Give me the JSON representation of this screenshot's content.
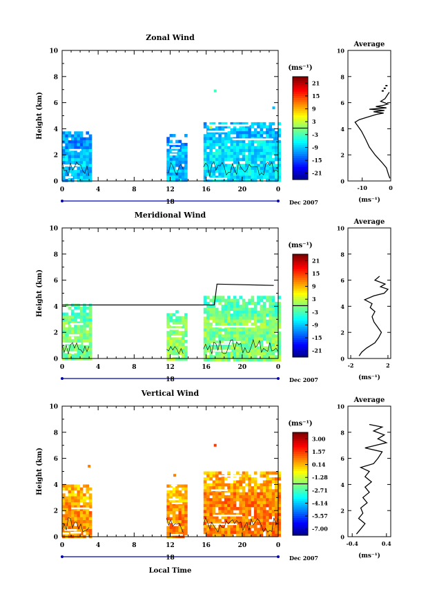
{
  "chart_data": [
    {
      "type": "heatmap",
      "title": "Zonal Wind",
      "ylabel": "Height (km)",
      "ylim": [
        0,
        10
      ],
      "yticks": [
        "0",
        "2",
        "4",
        "6",
        "8",
        "10"
      ],
      "xlim": [
        0,
        24
      ],
      "xticks": [
        "0",
        "4",
        "8",
        "12",
        "16",
        "20",
        "0"
      ],
      "date_tick": "18",
      "date_label": "Dec 2007",
      "colorbar_unit": "(ms⁻¹)",
      "colorbar_ticks": [
        "21",
        "15",
        "9",
        "3",
        "-3",
        "-9",
        "-15",
        "-21"
      ],
      "colorbar_range": [
        -24,
        24
      ],
      "data_blocks": [
        {
          "x": [
            0,
            3
          ],
          "y": [
            0,
            3.8
          ],
          "value": -9
        },
        {
          "x": [
            11.6,
            13.6
          ],
          "y": [
            0,
            3.6
          ],
          "value": -9
        },
        {
          "x": [
            15.7,
            24
          ],
          "y": [
            0,
            4.5
          ],
          "value": -7
        }
      ],
      "scattered_points": [
        {
          "x": 17.0,
          "y": 6.9,
          "value": -3
        },
        {
          "x": 16.5,
          "y": 4.1,
          "value": 4
        },
        {
          "x": 23.5,
          "y": 5.6,
          "value": -9
        }
      ],
      "average": {
        "title": "Average",
        "xlabel": "(ms⁻¹)",
        "xticks": [
          "-10",
          "0"
        ],
        "xlim": [
          -15,
          0
        ],
        "profile": [
          [
            -0.3,
            0.2
          ],
          [
            -0.8,
            0.5
          ],
          [
            -1.5,
            1.0
          ],
          [
            -3.0,
            1.4
          ],
          [
            -5.5,
            2.0
          ],
          [
            -7.5,
            2.6
          ],
          [
            -8.8,
            3.2
          ],
          [
            -10.2,
            3.8
          ],
          [
            -11.5,
            4.2
          ],
          [
            -12.5,
            4.5
          ],
          [
            -11.0,
            4.7
          ],
          [
            -8.0,
            4.9
          ],
          [
            -5.0,
            5.1
          ],
          [
            -2.5,
            5.2
          ],
          [
            -6.0,
            5.3
          ],
          [
            -2.2,
            5.4
          ],
          [
            -7.5,
            5.5
          ],
          [
            -1.5,
            5.6
          ],
          [
            -5.2,
            5.7
          ],
          [
            -2.5,
            5.8
          ],
          [
            -1.0,
            5.9
          ],
          [
            -3.5,
            6.1
          ],
          [
            -2.0,
            6.3
          ],
          [
            -0.5,
            6.8
          ]
        ],
        "upper_points": [
          [
            -1.5,
            7.3
          ],
          [
            -2.1,
            7.1
          ],
          [
            -2.8,
            6.9
          ]
        ]
      }
    },
    {
      "type": "heatmap",
      "title": "Meridional Wind",
      "ylabel": "Height (km)",
      "ylim": [
        0,
        10
      ],
      "yticks": [
        "0",
        "2",
        "4",
        "6",
        "8",
        "10"
      ],
      "xlim": [
        0,
        24
      ],
      "xticks": [
        "0",
        "4",
        "8",
        "12",
        "16",
        "20",
        "0"
      ],
      "date_tick": "18",
      "date_label": "Dec 2007",
      "colorbar_unit": "(ms⁻¹)",
      "colorbar_ticks": [
        "21",
        "15",
        "9",
        "3",
        "-3",
        "-9",
        "-15",
        "-21"
      ],
      "colorbar_range": [
        -24,
        24
      ],
      "data_blocks": [
        {
          "x": [
            0,
            3
          ],
          "y": [
            0,
            4.2
          ],
          "value": 0
        },
        {
          "x": [
            11.6,
            13.6
          ],
          "y": [
            0,
            3.7
          ],
          "value": 1
        },
        {
          "x": [
            15.7,
            24
          ],
          "y": [
            0,
            4.8
          ],
          "value": 0
        }
      ],
      "cutoff_line": [
        [
          0,
          4.1
        ],
        [
          16.9,
          4.1
        ],
        [
          17.2,
          5.7
        ],
        [
          23.5,
          5.6
        ]
      ],
      "average": {
        "title": "Average",
        "xlabel": "(ms⁻¹)",
        "xticks": [
          "-2",
          "2"
        ],
        "xlim": [
          -2.3,
          2.3
        ],
        "profile": [
          [
            -1.1,
            0.2
          ],
          [
            -0.8,
            0.5
          ],
          [
            -0.3,
            0.8
          ],
          [
            0.6,
            1.2
          ],
          [
            1.0,
            1.6
          ],
          [
            1.3,
            2.0
          ],
          [
            0.9,
            2.4
          ],
          [
            0.5,
            2.8
          ],
          [
            0.3,
            3.2
          ],
          [
            0.6,
            3.6
          ],
          [
            0.1,
            3.9
          ],
          [
            0.3,
            4.2
          ],
          [
            -0.5,
            4.5
          ],
          [
            0.5,
            4.8
          ],
          [
            1.6,
            5.0
          ],
          [
            2.0,
            5.3
          ],
          [
            1.2,
            5.5
          ],
          [
            1.7,
            5.7
          ],
          [
            0.6,
            6.0
          ],
          [
            1.1,
            6.3
          ]
        ]
      }
    },
    {
      "type": "heatmap",
      "title": "Vertical Wind",
      "ylabel": "Height (km)",
      "xlabel": "Local Time",
      "ylim": [
        0,
        10
      ],
      "yticks": [
        "0",
        "2",
        "4",
        "6",
        "8",
        "10"
      ],
      "xlim": [
        0,
        24
      ],
      "xticks": [
        "0",
        "4",
        "8",
        "12",
        "16",
        "20",
        "0"
      ],
      "date_tick": "18",
      "date_label": "Dec 2007",
      "colorbar_unit": "(ms⁻¹)",
      "colorbar_ticks": [
        "3.00",
        "1.57",
        "0.14",
        "-1.28",
        "-2.71",
        "-4.14",
        "-5.57",
        "-7.00"
      ],
      "colorbar_range": [
        -7.0,
        3.0
      ],
      "data_blocks": [
        {
          "x": [
            0,
            3
          ],
          "y": [
            0,
            4.0
          ],
          "value": 0.3
        },
        {
          "x": [
            11.6,
            13.6
          ],
          "y": [
            0,
            4.0
          ],
          "value": 0.4
        },
        {
          "x": [
            15.7,
            24
          ],
          "y": [
            0,
            5.0
          ],
          "value": 0.5
        }
      ],
      "scattered_points": [
        {
          "x": 17.0,
          "y": 7.0,
          "value": 1.2
        },
        {
          "x": 3.0,
          "y": 5.4,
          "value": 0.5
        },
        {
          "x": 12.5,
          "y": 4.7,
          "value": 0.5
        }
      ],
      "average": {
        "title": "Average",
        "xlabel": "(ms⁻¹)",
        "xticks": [
          "-0.4",
          "0.4"
        ],
        "xlim": [
          -0.5,
          0.5
        ],
        "profile": [
          [
            -0.3,
            0.2
          ],
          [
            -0.2,
            0.6
          ],
          [
            -0.1,
            1.0
          ],
          [
            -0.25,
            1.4
          ],
          [
            -0.15,
            1.8
          ],
          [
            -0.2,
            2.2
          ],
          [
            -0.05,
            2.6
          ],
          [
            -0.15,
            3.0
          ],
          [
            0.0,
            3.4
          ],
          [
            -0.1,
            3.8
          ],
          [
            0.05,
            4.2
          ],
          [
            -0.1,
            4.6
          ],
          [
            0.0,
            5.0
          ],
          [
            -0.2,
            5.3
          ],
          [
            0.1,
            5.6
          ],
          [
            0.2,
            6.0
          ],
          [
            0.3,
            6.5
          ],
          [
            -0.1,
            6.8
          ],
          [
            0.4,
            7.2
          ],
          [
            0.2,
            7.5
          ],
          [
            0.35,
            7.8
          ],
          [
            0.1,
            8.1
          ],
          [
            0.3,
            8.4
          ],
          [
            0.0,
            8.6
          ]
        ]
      }
    }
  ]
}
